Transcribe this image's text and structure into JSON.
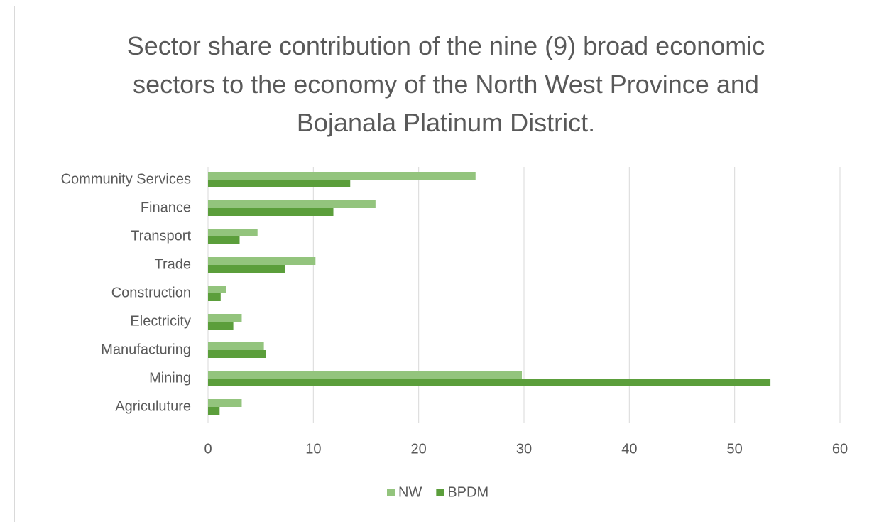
{
  "chart_data": {
    "type": "hbar",
    "title": "Sector share contribution of the nine (9) broad economic sectors to the economy of the North West Province and Bojanala Platinum District.",
    "categories": [
      "Community Services",
      "Finance",
      "Transport",
      "Trade",
      "Construction",
      "Electricity",
      "Manufacturing",
      "Mining",
      "Agriculuture"
    ],
    "series": [
      {
        "name": "NW",
        "color": "#93c47d",
        "values": [
          25.4,
          15.9,
          4.7,
          10.2,
          1.7,
          3.2,
          5.3,
          29.8,
          3.2
        ]
      },
      {
        "name": "BPDM",
        "color": "#5b9e3b",
        "values": [
          13.5,
          11.9,
          3.0,
          7.3,
          1.2,
          2.4,
          5.5,
          53.4,
          1.1
        ]
      }
    ],
    "xlim": [
      0,
      60
    ],
    "xticks": [
      0,
      10,
      20,
      30,
      40,
      50,
      60
    ],
    "grid": true,
    "legend": "bottom"
  }
}
